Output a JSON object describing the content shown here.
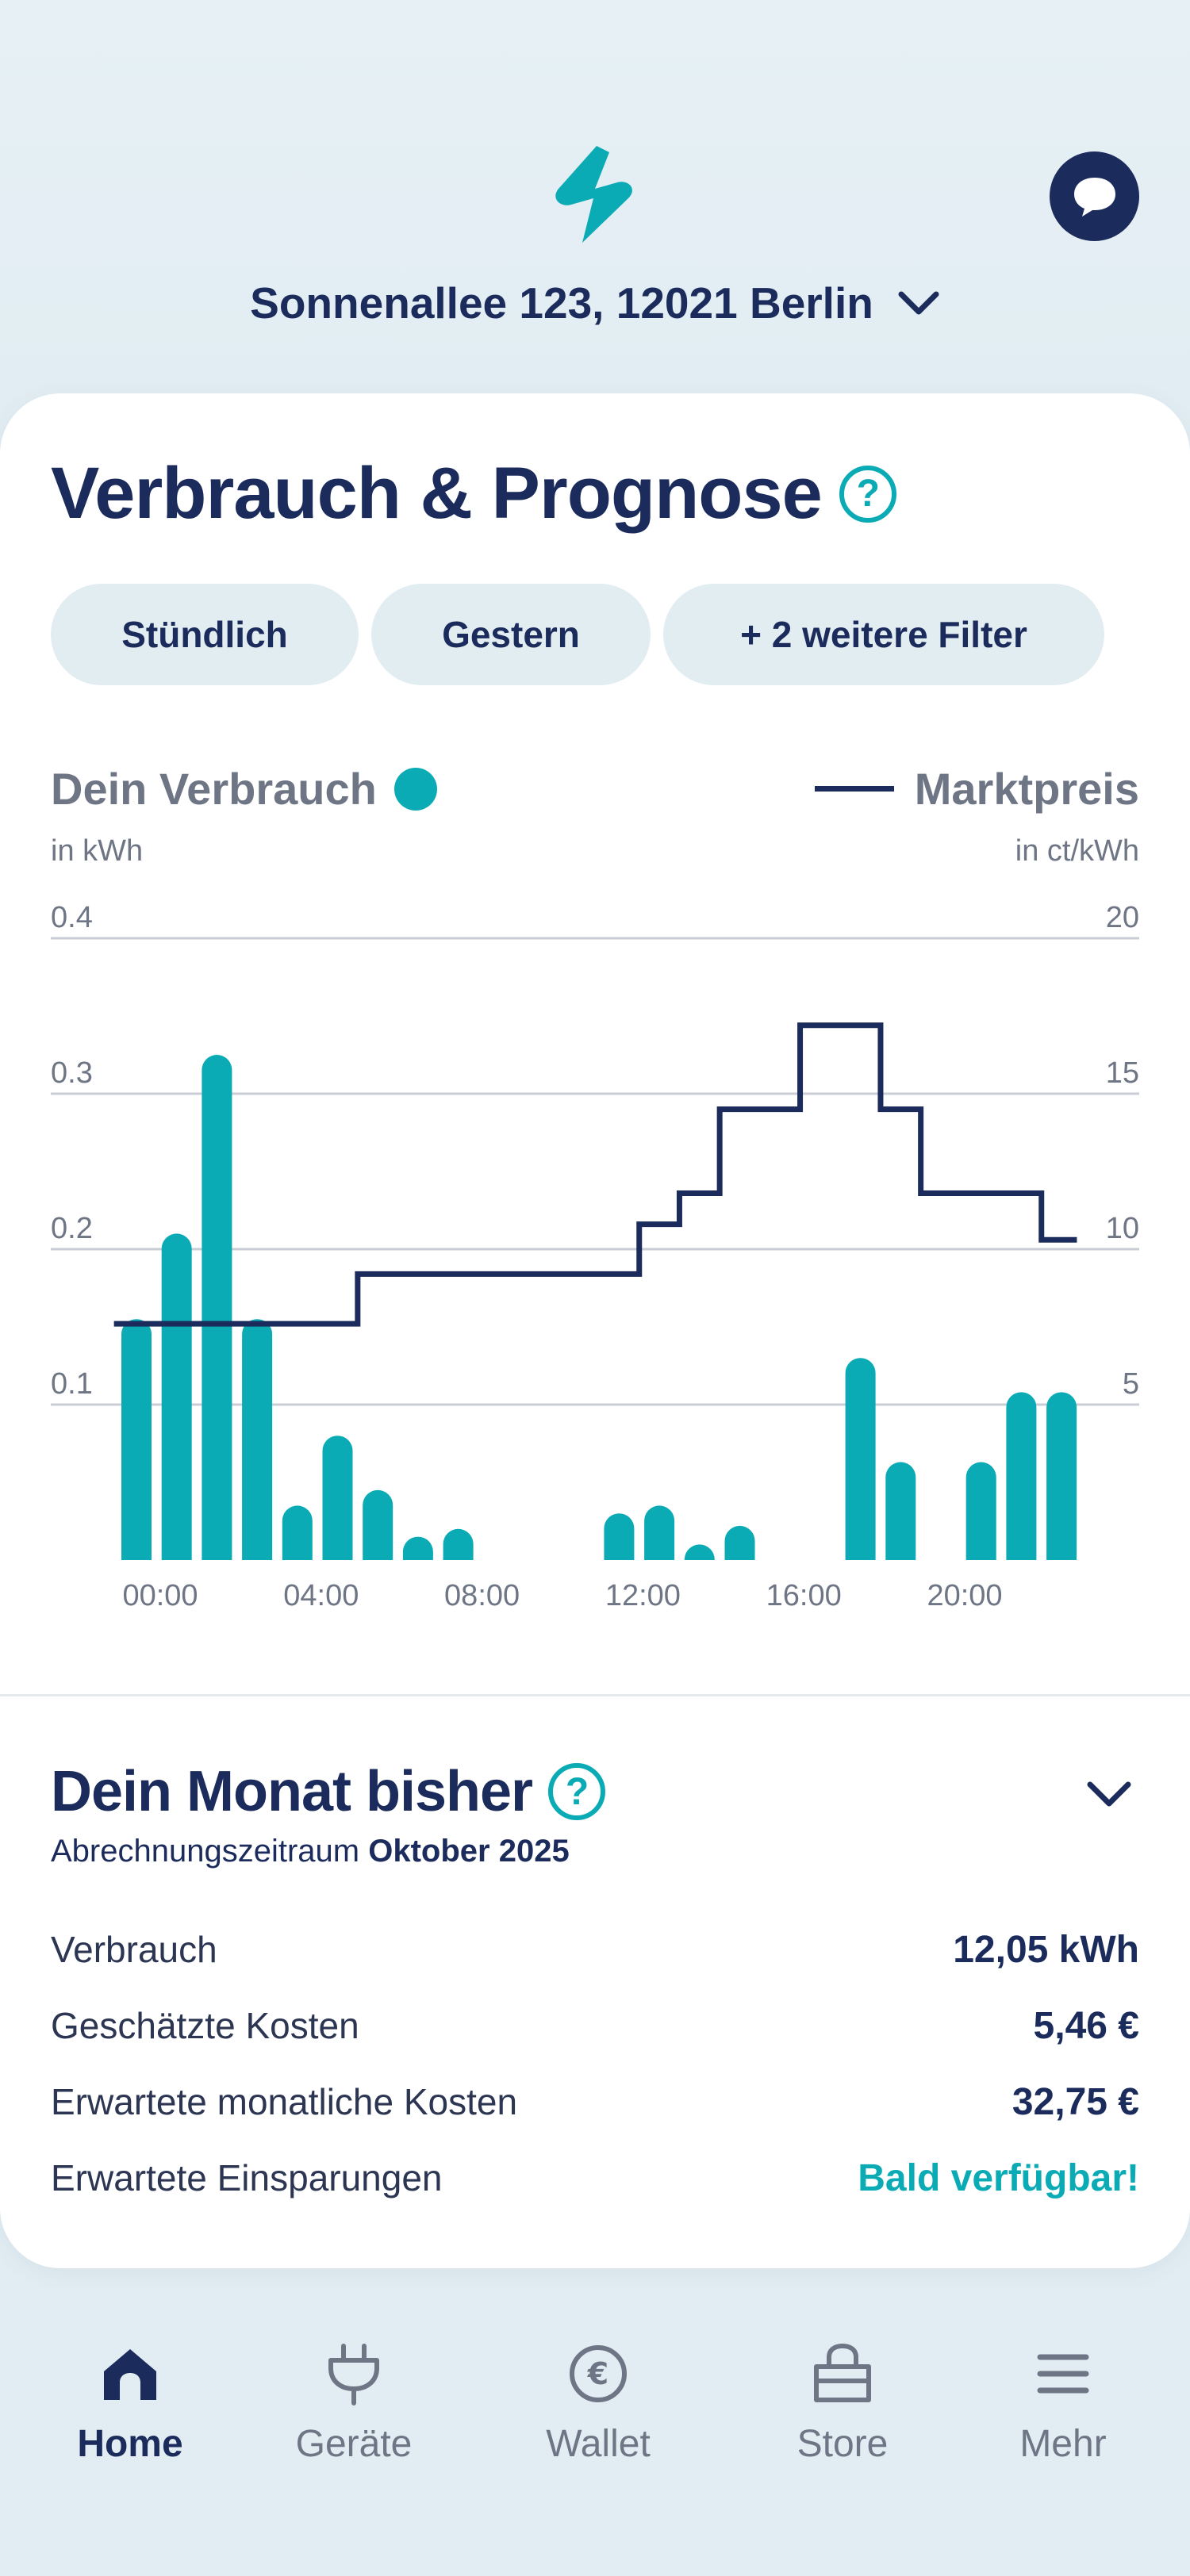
{
  "header": {
    "address": "Sonnenallee 123, 12021 Berlin"
  },
  "consumption": {
    "title": "Verbrauch & Prognose",
    "help_symbol": "?",
    "filters": [
      "Stündlich",
      "Gestern",
      "+ 2 weitere Filter"
    ],
    "legend_consumption": "Dein Verbrauch",
    "legend_price": "Marktpreis",
    "unit_left": "in kWh",
    "unit_right": "in ct/kWh"
  },
  "chart_data": {
    "type": "bar",
    "title": "",
    "xlabel": "",
    "ylabel": "in kWh",
    "y2label": "in ct/kWh",
    "ylim": [
      0,
      0.4
    ],
    "y2lim": [
      0,
      20
    ],
    "yticks": [
      "0.1",
      "0.2",
      "0.3",
      "0.4"
    ],
    "y2ticks": [
      "5",
      "10",
      "15",
      "20"
    ],
    "x_tick_labels": [
      "00:00",
      "04:00",
      "08:00",
      "12:00",
      "16:00",
      "20:00"
    ],
    "x_tick_hours": [
      0,
      4,
      8,
      12,
      16,
      20
    ],
    "hours": [
      0,
      1,
      2,
      3,
      4,
      5,
      6,
      7,
      8,
      9,
      10,
      11,
      12,
      13,
      14,
      15,
      16,
      17,
      18,
      19,
      20,
      21,
      22,
      23
    ],
    "series": [
      {
        "name": "Dein Verbrauch",
        "kind": "bar",
        "axis": "left",
        "values": [
          0.155,
          0.21,
          0.325,
          0.155,
          0.035,
          0.08,
          0.045,
          0.015,
          0.02,
          0,
          0,
          0,
          0.03,
          0.035,
          0.01,
          0.022,
          0,
          0,
          0.13,
          0.063,
          0,
          0.063,
          0.108,
          0.108
        ]
      },
      {
        "name": "Marktpreis",
        "kind": "step-line",
        "axis": "right",
        "values": [
          7.6,
          7.6,
          7.6,
          7.6,
          7.6,
          7.6,
          9.2,
          9.2,
          9.2,
          9.2,
          9.2,
          9.2,
          9.2,
          10.8,
          11.8,
          14.5,
          14.5,
          17.2,
          17.2,
          14.5,
          11.8,
          11.8,
          11.8,
          10.3
        ]
      }
    ],
    "colors": {
      "bars": "#0aabb5",
      "line": "#1b2b5c",
      "grid": "#c9ced6"
    }
  },
  "month": {
    "title": "Dein Monat bisher",
    "period_label": "Abrechnungszeitraum",
    "period_value": "Oktober 2025",
    "rows": [
      {
        "label": "Verbrauch",
        "value": "12,05 kWh"
      },
      {
        "label": "Geschätzte Kosten",
        "value": "5,46 €"
      },
      {
        "label": "Erwartete monatliche Kosten",
        "value": "32,75 €"
      },
      {
        "label": "Erwartete Einsparungen",
        "value": "Bald verfügbar!"
      }
    ]
  },
  "nav": {
    "items": [
      {
        "label": "Home",
        "icon": "home-icon"
      },
      {
        "label": "Geräte",
        "icon": "plug-icon"
      },
      {
        "label": "Wallet",
        "icon": "euro-icon"
      },
      {
        "label": "Store",
        "icon": "bag-icon"
      },
      {
        "label": "Mehr",
        "icon": "menu-icon"
      }
    ]
  },
  "colors": {
    "primary": "#1b2b5c",
    "accent": "#0aabb5",
    "muted": "#6e7585",
    "chip_bg": "#e2edf2"
  }
}
